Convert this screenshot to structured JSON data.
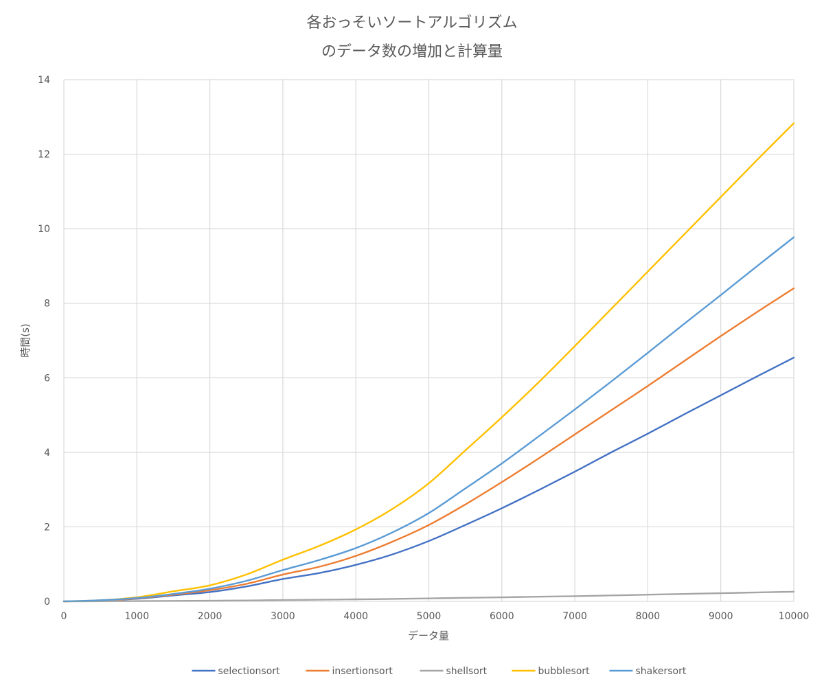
{
  "chart_data": {
    "type": "line",
    "title_lines": [
      "各おっそいソートアルゴリズム",
      "のデータ数の増加と計算量"
    ],
    "xlabel": "データ量",
    "ylabel": "時間(s)",
    "xlim": [
      0,
      10000
    ],
    "ylim": [
      0,
      14
    ],
    "x_ticks": [
      0,
      1000,
      2000,
      3000,
      4000,
      5000,
      6000,
      7000,
      8000,
      9000,
      10000
    ],
    "y_ticks": [
      0,
      2,
      4,
      6,
      8,
      10,
      12,
      14
    ],
    "grid": true,
    "legend_position": "bottom",
    "x": [
      0,
      500,
      1000,
      1500,
      2000,
      2500,
      3000,
      3500,
      4000,
      4500,
      5000,
      5500,
      6000,
      6500,
      7000,
      7500,
      8000,
      8500,
      9000,
      9500,
      10000
    ],
    "series": [
      {
        "name": "selectionsort",
        "color": "#4472C4",
        "values": [
          0,
          0.02,
          0.07,
          0.16,
          0.25,
          0.4,
          0.6,
          0.76,
          0.98,
          1.26,
          1.62,
          2.05,
          2.5,
          2.98,
          3.48,
          4.0,
          4.5,
          5.02,
          5.53,
          6.04,
          6.54
        ]
      },
      {
        "name": "insertionsort",
        "color": "#ED7D31",
        "values": [
          0,
          0.02,
          0.08,
          0.18,
          0.3,
          0.47,
          0.72,
          0.93,
          1.22,
          1.6,
          2.05,
          2.6,
          3.2,
          3.83,
          4.48,
          5.13,
          5.78,
          6.45,
          7.12,
          7.77,
          8.4
        ]
      },
      {
        "name": "shellsort",
        "color": "#A5A5A5",
        "values": [
          0,
          0.003,
          0.008,
          0.012,
          0.018,
          0.025,
          0.035,
          0.045,
          0.055,
          0.065,
          0.08,
          0.095,
          0.11,
          0.125,
          0.14,
          0.16,
          0.18,
          0.2,
          0.22,
          0.24,
          0.26
        ]
      },
      {
        "name": "bubblesort",
        "color": "#FFC000",
        "values": [
          0,
          0.03,
          0.11,
          0.27,
          0.43,
          0.72,
          1.12,
          1.49,
          1.93,
          2.48,
          3.17,
          4.05,
          4.94,
          5.87,
          6.85,
          7.85,
          8.85,
          9.85,
          10.85,
          11.85,
          12.83
        ]
      },
      {
        "name": "shakersort",
        "color": "#5B9BD5",
        "values": [
          0,
          0.03,
          0.09,
          0.2,
          0.34,
          0.55,
          0.84,
          1.11,
          1.43,
          1.85,
          2.37,
          3.03,
          3.7,
          4.42,
          5.15,
          5.9,
          6.67,
          7.45,
          8.22,
          9.0,
          9.77
        ]
      }
    ]
  }
}
